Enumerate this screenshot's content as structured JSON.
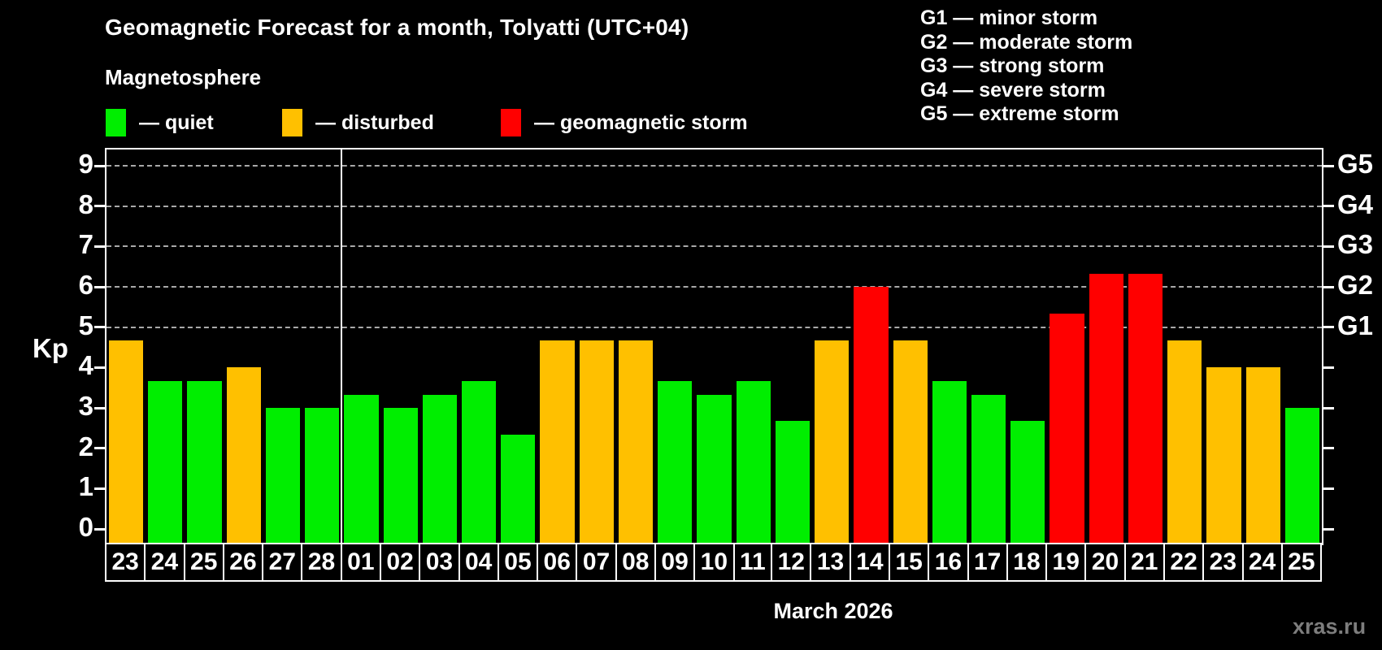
{
  "title": "Geomagnetic Forecast for a month, Tolyatti (UTC+04)",
  "subtitle": "Magnetosphere",
  "legend": {
    "quiet": "— quiet",
    "disturbed": "— disturbed",
    "storm": "— geomagnetic storm"
  },
  "g_legend": [
    "G1 — minor storm",
    "G2 — moderate storm",
    "G3 — strong storm",
    "G4 — severe storm",
    "G5 — extreme storm"
  ],
  "axis": {
    "kp_label": "Kp",
    "left_ticks": [
      "0",
      "1",
      "2",
      "3",
      "4",
      "5",
      "6",
      "7",
      "8",
      "9"
    ],
    "right_labels": [
      "G1",
      "G2",
      "G3",
      "G4",
      "G5"
    ]
  },
  "month_label": "March 2026",
  "watermark": "xras.ru",
  "colors": {
    "quiet": "#00ee00",
    "disturbed": "#ffc000",
    "storm": "#ff0000",
    "grid": "#a9a9a9",
    "axis": "#ffffff",
    "background": "#000000"
  },
  "chart_data": {
    "type": "bar",
    "title": "Geomagnetic Forecast for a month, Tolyatti (UTC+04)",
    "xlabel": "March 2026",
    "ylabel": "Kp",
    "ylim": [
      0,
      9
    ],
    "grid_levels": [
      5,
      6,
      7,
      8,
      9
    ],
    "right_axis_map": {
      "G1": 5,
      "G2": 6,
      "G3": 7,
      "G4": 8,
      "G5": 9
    },
    "separator_after_index": 5,
    "categories": [
      "23",
      "24",
      "25",
      "26",
      "27",
      "28",
      "01",
      "02",
      "03",
      "04",
      "05",
      "06",
      "07",
      "08",
      "09",
      "10",
      "11",
      "12",
      "13",
      "14",
      "15",
      "16",
      "17",
      "18",
      "19",
      "20",
      "21",
      "22",
      "23",
      "24",
      "25"
    ],
    "values": [
      4.67,
      3.67,
      3.67,
      4.0,
      3.0,
      3.0,
      3.33,
      3.0,
      3.33,
      3.67,
      2.33,
      4.67,
      4.67,
      4.67,
      3.67,
      3.33,
      3.67,
      2.67,
      4.67,
      6.0,
      4.67,
      3.67,
      3.33,
      2.67,
      5.33,
      6.33,
      6.33,
      4.67,
      4.0,
      4.0,
      3.0
    ],
    "statuses": [
      "disturbed",
      "quiet",
      "quiet",
      "disturbed",
      "quiet",
      "quiet",
      "quiet",
      "quiet",
      "quiet",
      "quiet",
      "quiet",
      "disturbed",
      "disturbed",
      "disturbed",
      "quiet",
      "quiet",
      "quiet",
      "quiet",
      "disturbed",
      "storm",
      "disturbed",
      "quiet",
      "quiet",
      "quiet",
      "storm",
      "storm",
      "storm",
      "disturbed",
      "disturbed",
      "disturbed",
      "quiet"
    ]
  }
}
